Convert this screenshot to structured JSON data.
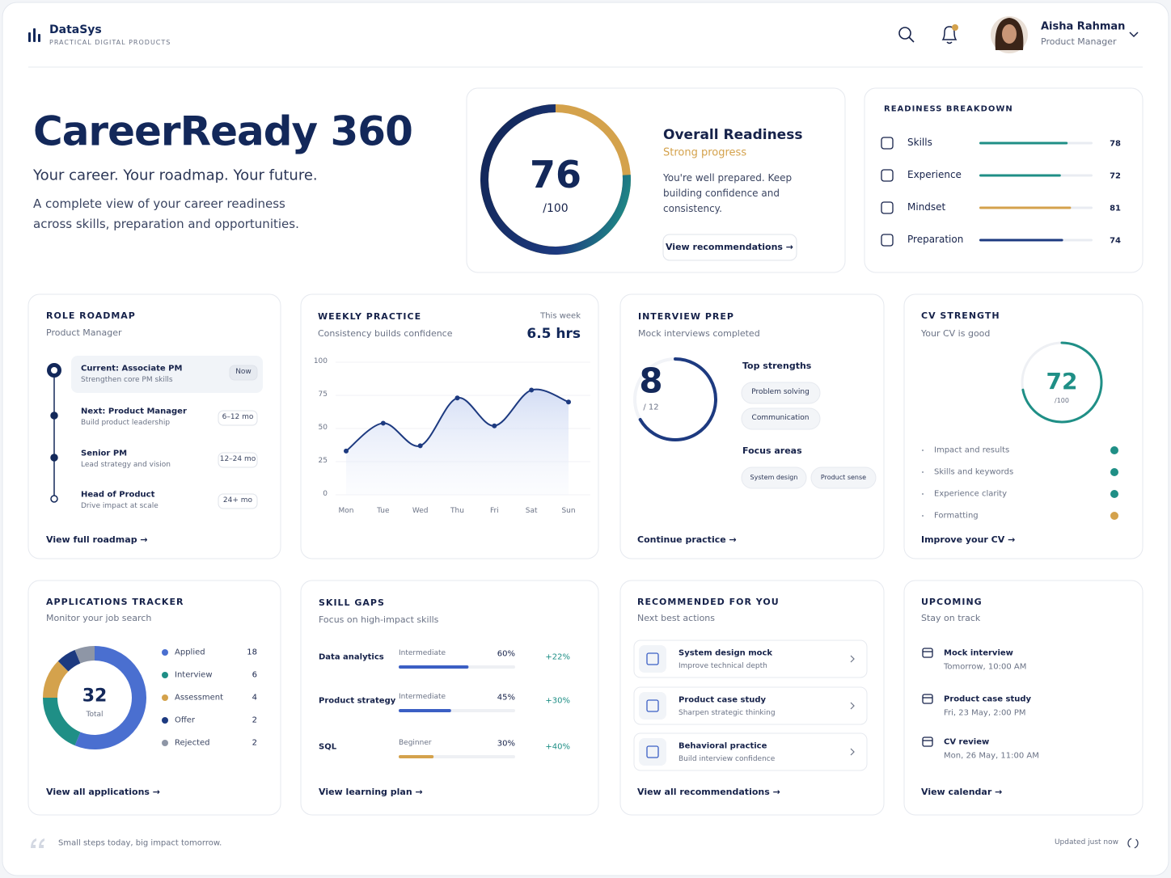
{
  "header": {
    "brand": "DataSys",
    "tagline": "PRACTICAL DIGITAL PRODUCTS",
    "user_name": "Aisha Rahman",
    "user_role": "Product Manager"
  },
  "hero": {
    "title": "CareerReady 360",
    "subtitle": "Your career. Your roadmap. Your future.",
    "description": "A complete view of your career readiness across skills, preparation and opportunities."
  },
  "readiness": {
    "score": 76,
    "scale": {
      "value": 100,
      "label": "/100"
    },
    "title": "Overall Readiness",
    "status": "Strong progress",
    "text": "You're well prepared. Keep building confidence and consistency.",
    "button": "View recommendations →"
  },
  "breakdown": {
    "title": "READINESS BREAKDOWN",
    "xlim": [
      0,
      100
    ],
    "items": [
      {
        "label": "Skills",
        "value": 78,
        "color": "#1f8f86"
      },
      {
        "label": "Experience",
        "value": 72,
        "color": "#1f8f86"
      },
      {
        "label": "Mindset",
        "value": 81,
        "color": "#d4a24c"
      },
      {
        "label": "Preparation",
        "value": 74,
        "color": "#1d3a80"
      }
    ]
  },
  "roadmap": {
    "title": "ROLE ROADMAP",
    "subtitle": "Product Manager",
    "steps": [
      {
        "title": "Current: Associate PM",
        "desc": "Strengthen core PM skills",
        "tag": "Now"
      },
      {
        "title": "Next: Product Manager",
        "desc": "Build product leadership",
        "tag": "6–12 mo"
      },
      {
        "title": "Senior PM",
        "desc": "Lead strategy and vision",
        "tag": "12–24 mo"
      },
      {
        "title": "Head of Product",
        "desc": "Drive impact at scale",
        "tag": "24+ mo"
      }
    ],
    "link": "View full roadmap →"
  },
  "weekly": {
    "title": "WEEKLY PRACTICE",
    "subtitle": "Consistency builds confidence",
    "period": "This week",
    "total": "6.5 hrs",
    "chart_data": {
      "type": "line",
      "categories": [
        "Mon",
        "Tue",
        "Wed",
        "Thu",
        "Fri",
        "Sat",
        "Sun"
      ],
      "values": [
        33,
        54,
        37,
        73,
        52,
        79,
        70
      ],
      "color": "#1d3a80",
      "ylim": [
        0,
        100
      ],
      "yticks": [
        0,
        25,
        50,
        75,
        100
      ]
    }
  },
  "interview": {
    "title": "INTERVIEW PREP",
    "subtitle": "Mock interviews completed",
    "completed": 8,
    "total": {
      "value": 12,
      "label": "/ 12"
    },
    "strengths_title": "Top strengths",
    "strengths": [
      "Problem solving",
      "Communication"
    ],
    "focus_title": "Focus areas",
    "focus": [
      "System design",
      "Product sense"
    ],
    "link": "Continue practice →"
  },
  "cv": {
    "title": "CV STRENGTH",
    "subtitle": "Your CV is good",
    "score": 72,
    "scale": {
      "value": 100,
      "label": "/100"
    },
    "checks": [
      {
        "label": "Impact and results",
        "color": "#1f8f86"
      },
      {
        "label": "Skills and keywords",
        "color": "#1f8f86"
      },
      {
        "label": "Experience clarity",
        "color": "#1f8f86"
      },
      {
        "label": "Formatting",
        "color": "#d4a24c"
      }
    ],
    "link": "Improve your CV →"
  },
  "applications": {
    "title": "APPLICATIONS TRACKER",
    "subtitle": "Monitor your job search",
    "total": 32,
    "total_label": "Total",
    "chart_data": {
      "type": "donut",
      "series": [
        {
          "name": "Applied",
          "value": 18,
          "color": "#4a6fd0"
        },
        {
          "name": "Interview",
          "value": 6,
          "color": "#1f8f86"
        },
        {
          "name": "Assessment",
          "value": 4,
          "color": "#d4a24c"
        },
        {
          "name": "Offer",
          "value": 2,
          "color": "#1d3a80"
        },
        {
          "name": "Rejected",
          "value": 2,
          "color": "#8e96a6"
        }
      ]
    },
    "link": "View all applications →"
  },
  "skills": {
    "title": "SKILL GAPS",
    "subtitle": "Focus on high-impact skills",
    "xlim": [
      0,
      100
    ],
    "items": [
      {
        "name": "Data analytics",
        "level": "Intermediate",
        "value": 60,
        "value_label": "60%",
        "change": "+22%",
        "color": "#3b5fc4"
      },
      {
        "name": "Product strategy",
        "level": "Intermediate",
        "value": 45,
        "value_label": "45%",
        "change": "+30%",
        "color": "#3b5fc4"
      },
      {
        "name": "SQL",
        "level": "Beginner",
        "value": 30,
        "value_label": "30%",
        "change": "+40%",
        "color": "#d4a24c"
      }
    ],
    "link": "View learning plan →"
  },
  "recommended": {
    "title": "RECOMMENDED FOR YOU",
    "subtitle": "Next best actions",
    "items": [
      {
        "title": "System design mock",
        "desc": "Improve technical depth"
      },
      {
        "title": "Product case study",
        "desc": "Sharpen strategic thinking"
      },
      {
        "title": "Behavioral practice",
        "desc": "Build interview confidence"
      }
    ],
    "link": "View all recommendations →"
  },
  "upcoming": {
    "title": "UPCOMING",
    "subtitle": "Stay on track",
    "items": [
      {
        "title": "Mock interview",
        "time": "Tomorrow, 10:00 AM"
      },
      {
        "title": "Product case study",
        "time": "Fri, 23 May, 2:00 PM"
      },
      {
        "title": "CV review",
        "time": "Mon, 26 May, 11:00 AM"
      }
    ],
    "link": "View calendar →"
  },
  "footer": {
    "quote": "Small steps today, big impact tomorrow.",
    "updated": "Updated just now"
  }
}
